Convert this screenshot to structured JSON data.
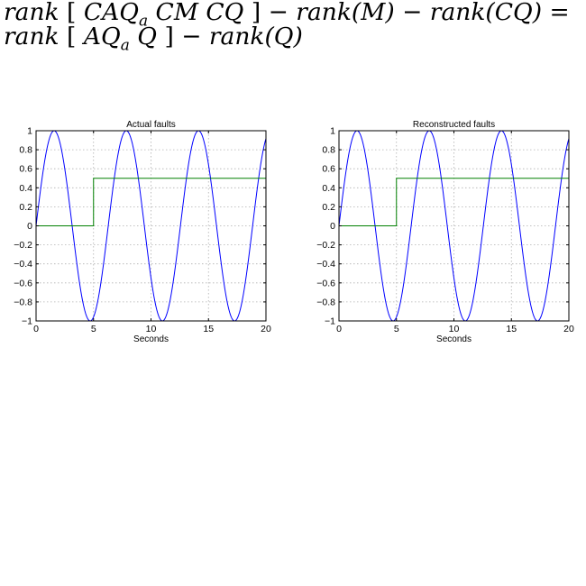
{
  "equation": {
    "line1": "rank [ CAQ_a CM CQ ] − rank(M) − rank(CQ) =",
    "line2": "rank [ AQ_a Q ] − rank(Q)",
    "line1_parts": {
      "rank": "rank",
      "lb": "[",
      "c": "C",
      "aq": "AQ",
      "a": "a",
      "cm": "CM",
      "cq": "CQ",
      "rb": "]",
      "minus1": "−",
      "rankm": "rank(M)",
      "minus2": "−",
      "rankcq": "rank(CQ)",
      "eq": "="
    },
    "line2_parts": {
      "rank": "rank",
      "lb": "[",
      "aq": "AQ",
      "a": "a",
      "q": "Q",
      "rb": "]",
      "minus": "−",
      "rankq": "rank(Q)"
    }
  },
  "chart_data": [
    {
      "type": "line",
      "title": "Actual faults",
      "xlabel": "Seconds",
      "ylabel": "",
      "xlim": [
        0,
        20
      ],
      "ylim": [
        -1,
        1
      ],
      "xticks": [
        0,
        5,
        10,
        15,
        20
      ],
      "yticks": [
        -1,
        -0.8,
        -0.6,
        -0.4,
        -0.2,
        0,
        0.2,
        0.4,
        0.6,
        0.8,
        1
      ],
      "grid": true,
      "series": [
        {
          "color": "#0000ff",
          "function": "sin",
          "amplitude": 1,
          "period": 6.28,
          "phase": 0
        },
        {
          "color": "#008000",
          "function": "step",
          "x": [
            0,
            5,
            5,
            20
          ],
          "y": [
            0,
            0,
            0.5,
            0.5
          ]
        }
      ]
    },
    {
      "type": "line",
      "title": "Reconstructed faults",
      "xlabel": "Seconds",
      "ylabel": "",
      "xlim": [
        0,
        20
      ],
      "ylim": [
        -1,
        1
      ],
      "xticks": [
        0,
        5,
        10,
        15,
        20
      ],
      "yticks": [
        -1,
        -0.8,
        -0.6,
        -0.4,
        -0.2,
        0,
        0.2,
        0.4,
        0.6,
        0.8,
        1
      ],
      "grid": true,
      "series": [
        {
          "color": "#0000ff",
          "function": "sin",
          "amplitude": 1,
          "period": 6.28,
          "phase": 0
        },
        {
          "color": "#008000",
          "function": "step",
          "x": [
            0,
            5,
            5,
            20
          ],
          "y": [
            0,
            0,
            0.5,
            0.5
          ]
        }
      ]
    }
  ]
}
